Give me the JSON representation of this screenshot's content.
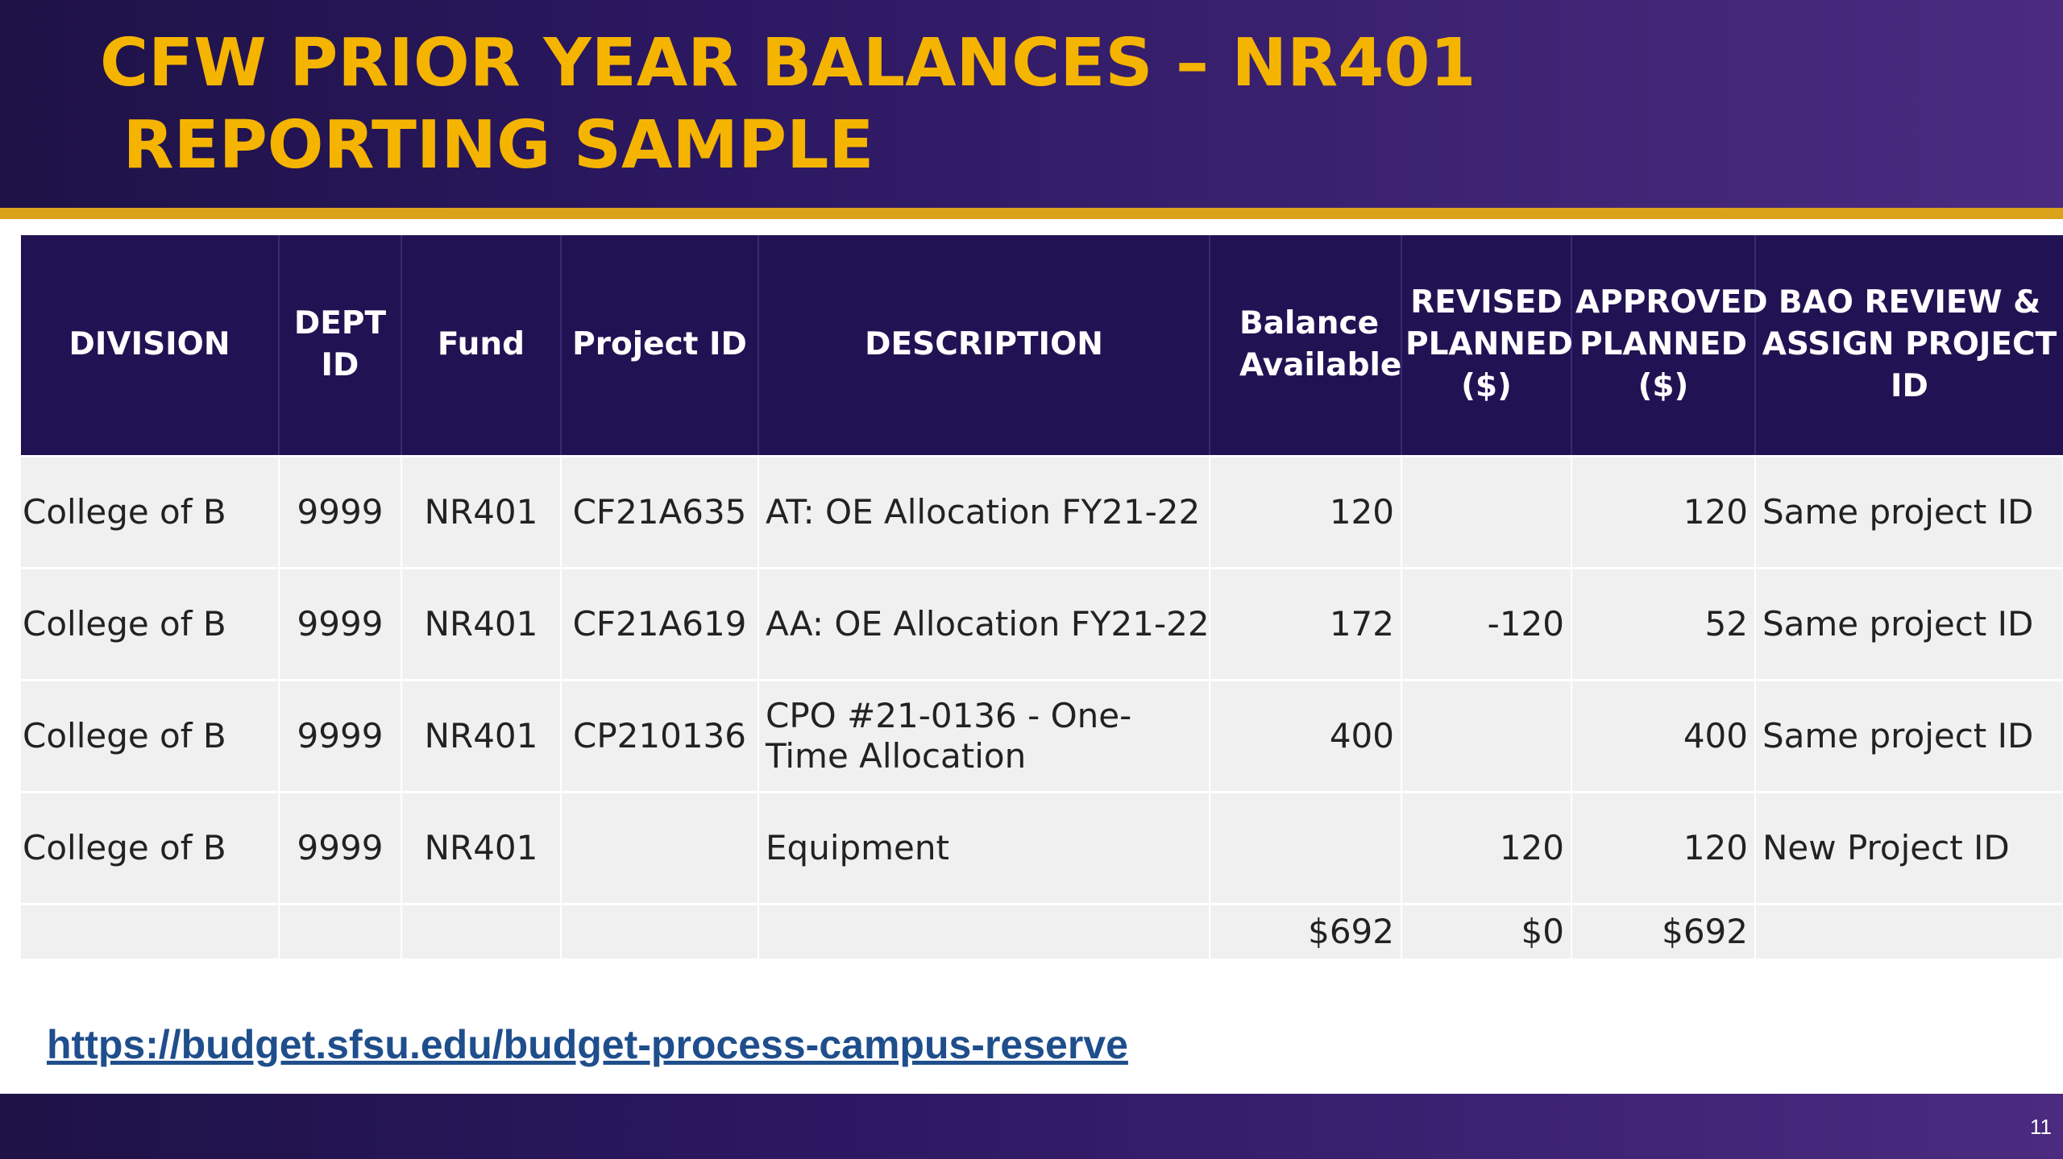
{
  "slide": {
    "title_line1": "CFW PRIOR YEAR BALANCES – NR401",
    "title_line2": " REPORTING SAMPLE",
    "link": "https://budget.sfsu.edu/budget-process-campus-reserve",
    "page_number": "11",
    "colors": {
      "header_bg": "#2c1862",
      "title": "#f5b400",
      "rule": "#d9a21a",
      "table_header": "#211353",
      "link": "#1f4e8c"
    }
  },
  "table": {
    "headers": [
      "DIVISION",
      "DEPT ID",
      "Fund",
      "Project ID",
      "DESCRIPTION",
      "Balance Available",
      "REVISED PLANNED ($)",
      "APPROVED PLANNED ($)",
      "BAO REVIEW & ASSIGN PROJECT ID"
    ],
    "rows": [
      [
        "College of B",
        "9999",
        "NR401",
        "CF21A635",
        "AT: OE Allocation FY21-22",
        "120",
        "",
        "120",
        "Same project ID"
      ],
      [
        "College of B",
        "9999",
        "NR401",
        "CF21A619",
        "AA: OE Allocation FY21-22",
        "172",
        "-120",
        "52",
        "Same project ID"
      ],
      [
        "College of B",
        "9999",
        "NR401",
        "CP210136",
        "CPO #21-0136 - One-Time Allocation",
        "400",
        "",
        "400",
        "Same project ID"
      ],
      [
        "College of B",
        "9999",
        "NR401",
        "",
        "Equipment",
        "",
        "120",
        "120",
        "New Project ID"
      ]
    ],
    "totals": [
      "",
      "",
      "",
      "",
      "",
      "$692",
      "$0",
      "$692",
      ""
    ]
  }
}
